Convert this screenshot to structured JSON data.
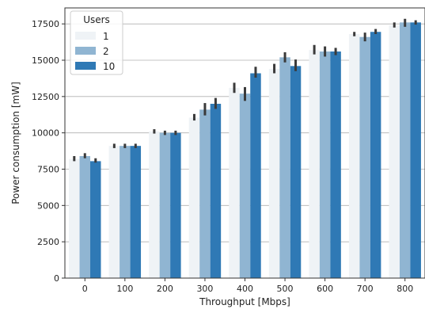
{
  "chart_data": {
    "type": "bar",
    "xlabel": "Throughput [Mbps]",
    "ylabel": "Power consumption [mW]",
    "categories": [
      "0",
      "100",
      "200",
      "300",
      "400",
      "500",
      "600",
      "700",
      "800"
    ],
    "ylim": [
      0,
      18600
    ],
    "yticks": [
      0,
      2500,
      5000,
      7500,
      10000,
      12500,
      15000,
      17500
    ],
    "ytick_labels": [
      "0",
      "2500",
      "5000",
      "7500",
      "10000",
      "12500",
      "15000",
      "17500"
    ],
    "grid": "horizontal",
    "legend": {
      "title": "Users",
      "placement": "top-left"
    },
    "series": [
      {
        "name": "1",
        "color": "#eff3f6",
        "values": [
          8200,
          9100,
          10100,
          11050,
          13100,
          14400,
          15700,
          16800,
          17400
        ],
        "err": [
          [
            8050,
            8400
          ],
          [
            8950,
            9250
          ],
          [
            9950,
            10250
          ],
          [
            10850,
            11300
          ],
          [
            12750,
            13450
          ],
          [
            14100,
            14750
          ],
          [
            15400,
            16050
          ],
          [
            16650,
            16950
          ],
          [
            17250,
            17600
          ]
        ]
      },
      {
        "name": "2",
        "color": "#90b5d2",
        "values": [
          8400,
          9100,
          10000,
          11600,
          12700,
          15200,
          15600,
          16600,
          17600
        ],
        "err": [
          [
            8250,
            8600
          ],
          [
            8950,
            9250
          ],
          [
            9850,
            10150
          ],
          [
            11200,
            12050
          ],
          [
            12200,
            13150
          ],
          [
            14850,
            15550
          ],
          [
            15250,
            15950
          ],
          [
            16300,
            16900
          ],
          [
            17300,
            17850
          ]
        ]
      },
      {
        "name": "10",
        "color": "#2f79b5",
        "values": [
          8050,
          9100,
          10000,
          12000,
          14100,
          14600,
          15600,
          16950,
          17600
        ],
        "err": [
          [
            7950,
            8250
          ],
          [
            8950,
            9250
          ],
          [
            9850,
            10150
          ],
          [
            11650,
            12400
          ],
          [
            13800,
            14550
          ],
          [
            14250,
            15050
          ],
          [
            15350,
            15850
          ],
          [
            16800,
            17150
          ],
          [
            17450,
            17750
          ]
        ]
      }
    ]
  }
}
